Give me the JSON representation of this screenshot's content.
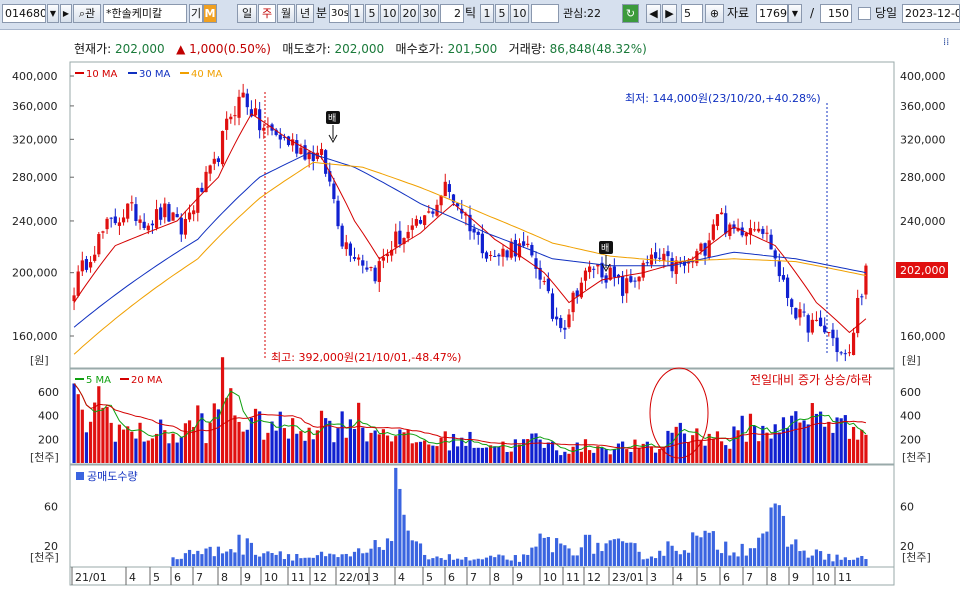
{
  "toolbar": {
    "code": "014680",
    "search_icon": "search-icon",
    "market_label": "관",
    "stock_name": "*한솔케미칼",
    "tag_gi": "기",
    "tag_m": "M",
    "periods": [
      "일",
      "주",
      "월",
      "년",
      "분"
    ],
    "selected_period": "주",
    "min_value": "30s",
    "min_buttons": [
      "1",
      "5",
      "10",
      "20",
      "30"
    ],
    "tick_value": "2",
    "tick_label": "틱",
    "tick_buttons": [
      "1",
      "5",
      "10"
    ],
    "interest_label": "관심:22",
    "interest_count": "5",
    "data_label": "자료",
    "data_count": "1769",
    "page_total": "150",
    "today_label": "당일",
    "date_value": "2023-12-0"
  },
  "info": {
    "price_label": "현재가:",
    "price_value": "202,000",
    "change_value": "▲ 1,000(0.50%)",
    "ask_label": "매도호가:",
    "ask_value": "202,000",
    "bid_label": "매수호가:",
    "bid_value": "201,500",
    "volume_label": "거래량:",
    "volume_value": "86,848(48.32%)"
  },
  "price_panel": {
    "legend": [
      "10 MA",
      "30 MA",
      "40 MA"
    ],
    "legend_colors": [
      "#d40000",
      "#1030c0",
      "#f0a000"
    ],
    "y_ticks": [
      "400,000",
      "360,000",
      "320,000",
      "280,000",
      "240,000",
      "200,000",
      "160,000"
    ],
    "y_unit": "[원]",
    "current_price_tag": "202,000",
    "high_annotation": "최고: 392,000원(21/10/01,-48.47%)",
    "low_annotation": "최저: 144,000원(23/10/20,+40.28%)",
    "marker_label": "배"
  },
  "volume_panel": {
    "legend": [
      "5 MA",
      "20 MA"
    ],
    "legend_colors": [
      "#10a010",
      "#d40000"
    ],
    "y_ticks": [
      "600",
      "400",
      "200"
    ],
    "y_unit": "[천주]",
    "note": "전일대비 증가 상승/하락"
  },
  "short_panel": {
    "legend": "공매도수량",
    "y_ticks": [
      "60",
      "20"
    ],
    "y_unit": "[천주]"
  },
  "x_axis": {
    "labels": [
      "21/01",
      "4",
      "5",
      "6",
      "7",
      "8",
      "9",
      "10",
      "11",
      "12",
      "22/01",
      "3",
      "4",
      "5",
      "6",
      "7",
      "8",
      "9",
      "10",
      "11",
      "12",
      "23/01",
      "3",
      "4",
      "5",
      "6",
      "7",
      "8",
      "9",
      "10",
      "11"
    ]
  },
  "chart_data": {
    "type": "candlestick",
    "interval": "weekly",
    "x_range": [
      "2021-01",
      "2023-11"
    ],
    "price_axis": {
      "min": 140000,
      "max": 410000,
      "scale": "log"
    },
    "highest": {
      "value": 392000,
      "date": "21/10/01"
    },
    "lowest": {
      "value": 144000,
      "date": "23/10/20"
    },
    "current": 202000,
    "close_anchors": [
      [
        0,
        190000
      ],
      [
        4,
        215000
      ],
      [
        8,
        235000
      ],
      [
        13,
        250000
      ],
      [
        18,
        240000
      ],
      [
        22,
        248000
      ],
      [
        26,
        232000
      ],
      [
        30,
        262000
      ],
      [
        34,
        290000
      ],
      [
        38,
        350000
      ],
      [
        41,
        375000
      ],
      [
        45,
        335000
      ],
      [
        49,
        325000
      ],
      [
        53,
        315000
      ],
      [
        57,
        305000
      ],
      [
        60,
        300000
      ],
      [
        63,
        260000
      ],
      [
        65,
        225000
      ],
      [
        69,
        212000
      ],
      [
        73,
        200000
      ],
      [
        78,
        225000
      ],
      [
        82,
        230000
      ],
      [
        86,
        245000
      ],
      [
        90,
        270000
      ],
      [
        94,
        250000
      ],
      [
        98,
        225000
      ],
      [
        102,
        210000
      ],
      [
        106,
        220000
      ],
      [
        110,
        215000
      ],
      [
        113,
        200000
      ],
      [
        116,
        172000
      ],
      [
        119,
        168000
      ],
      [
        122,
        190000
      ],
      [
        126,
        205000
      ],
      [
        130,
        198000
      ],
      [
        133,
        188000
      ],
      [
        137,
        200000
      ],
      [
        141,
        210000
      ],
      [
        145,
        205000
      ],
      [
        149,
        205000
      ],
      [
        153,
        220000
      ],
      [
        156,
        250000
      ],
      [
        159,
        230000
      ],
      [
        162,
        235000
      ],
      [
        166,
        240000
      ],
      [
        169,
        220000
      ],
      [
        172,
        190000
      ],
      [
        176,
        170000
      ],
      [
        180,
        165000
      ],
      [
        183,
        162000
      ],
      [
        186,
        150000
      ],
      [
        188,
        148000
      ],
      [
        190,
        180000
      ],
      [
        192,
        200000
      ]
    ],
    "moving_average_anchors": {
      "ma10": [
        [
          0,
          180000
        ],
        [
          10,
          220000
        ],
        [
          25,
          240000
        ],
        [
          35,
          280000
        ],
        [
          43,
          350000
        ],
        [
          52,
          320000
        ],
        [
          60,
          300000
        ],
        [
          68,
          240000
        ],
        [
          74,
          210000
        ],
        [
          84,
          230000
        ],
        [
          92,
          255000
        ],
        [
          102,
          225000
        ],
        [
          114,
          200000
        ],
        [
          120,
          180000
        ],
        [
          128,
          195000
        ],
        [
          138,
          200000
        ],
        [
          150,
          210000
        ],
        [
          160,
          235000
        ],
        [
          170,
          220000
        ],
        [
          180,
          180000
        ],
        [
          188,
          162000
        ],
        [
          192,
          170000
        ]
      ],
      "ma30": [
        [
          0,
          165000
        ],
        [
          15,
          195000
        ],
        [
          30,
          225000
        ],
        [
          45,
          280000
        ],
        [
          57,
          305000
        ],
        [
          68,
          290000
        ],
        [
          84,
          255000
        ],
        [
          100,
          230000
        ],
        [
          116,
          210000
        ],
        [
          130,
          205000
        ],
        [
          145,
          205000
        ],
        [
          160,
          215000
        ],
        [
          175,
          210000
        ],
        [
          192,
          200000
        ]
      ],
      "ma40": [
        [
          0,
          150000
        ],
        [
          15,
          180000
        ],
        [
          30,
          210000
        ],
        [
          45,
          260000
        ],
        [
          58,
          295000
        ],
        [
          70,
          290000
        ],
        [
          84,
          270000
        ],
        [
          100,
          245000
        ],
        [
          116,
          222000
        ],
        [
          130,
          212000
        ],
        [
          145,
          208000
        ],
        [
          160,
          210000
        ],
        [
          175,
          208000
        ],
        [
          192,
          198000
        ]
      ]
    },
    "volume_axis": {
      "min": 0,
      "max": 760
    },
    "volume_anchors": [
      [
        0,
        480
      ],
      [
        3,
        360
      ],
      [
        6,
        520
      ],
      [
        10,
        320
      ],
      [
        14,
        240
      ],
      [
        18,
        250
      ],
      [
        22,
        260
      ],
      [
        26,
        220
      ],
      [
        30,
        400
      ],
      [
        33,
        250
      ],
      [
        36,
        680
      ],
      [
        40,
        380
      ],
      [
        44,
        320
      ],
      [
        48,
        330
      ],
      [
        52,
        270
      ],
      [
        56,
        300
      ],
      [
        60,
        360
      ],
      [
        64,
        300
      ],
      [
        68,
        420
      ],
      [
        72,
        260
      ],
      [
        76,
        300
      ],
      [
        80,
        200
      ],
      [
        86,
        170
      ],
      [
        90,
        190
      ],
      [
        94,
        200
      ],
      [
        100,
        160
      ],
      [
        106,
        140
      ],
      [
        112,
        200
      ],
      [
        118,
        110
      ],
      [
        124,
        140
      ],
      [
        130,
        130
      ],
      [
        136,
        140
      ],
      [
        142,
        110
      ],
      [
        146,
        340
      ],
      [
        150,
        220
      ],
      [
        154,
        260
      ],
      [
        158,
        160
      ],
      [
        164,
        340
      ],
      [
        168,
        220
      ],
      [
        172,
        420
      ],
      [
        176,
        300
      ],
      [
        180,
        430
      ],
      [
        184,
        350
      ],
      [
        188,
        280
      ],
      [
        192,
        400
      ]
    ],
    "short_sell_axis": {
      "min": 0,
      "max": 95
    },
    "short_sell_anchors": [
      [
        0,
        0
      ],
      [
        23,
        0
      ],
      [
        24,
        6
      ],
      [
        28,
        15
      ],
      [
        34,
        14
      ],
      [
        40,
        22
      ],
      [
        46,
        16
      ],
      [
        52,
        12
      ],
      [
        56,
        8
      ],
      [
        60,
        10
      ],
      [
        64,
        8
      ],
      [
        68,
        12
      ],
      [
        72,
        14
      ],
      [
        76,
        28
      ],
      [
        79,
        88
      ],
      [
        82,
        18
      ],
      [
        88,
        10
      ],
      [
        96,
        6
      ],
      [
        104,
        8
      ],
      [
        110,
        8
      ],
      [
        114,
        28
      ],
      [
        118,
        18
      ],
      [
        124,
        22
      ],
      [
        130,
        20
      ],
      [
        136,
        16
      ],
      [
        140,
        10
      ],
      [
        144,
        18
      ],
      [
        148,
        22
      ],
      [
        152,
        28
      ],
      [
        158,
        20
      ],
      [
        162,
        18
      ],
      [
        166,
        30
      ],
      [
        170,
        48
      ],
      [
        174,
        22
      ],
      [
        178,
        14
      ],
      [
        182,
        10
      ],
      [
        186,
        8
      ],
      [
        190,
        6
      ],
      [
        192,
        8
      ]
    ]
  }
}
